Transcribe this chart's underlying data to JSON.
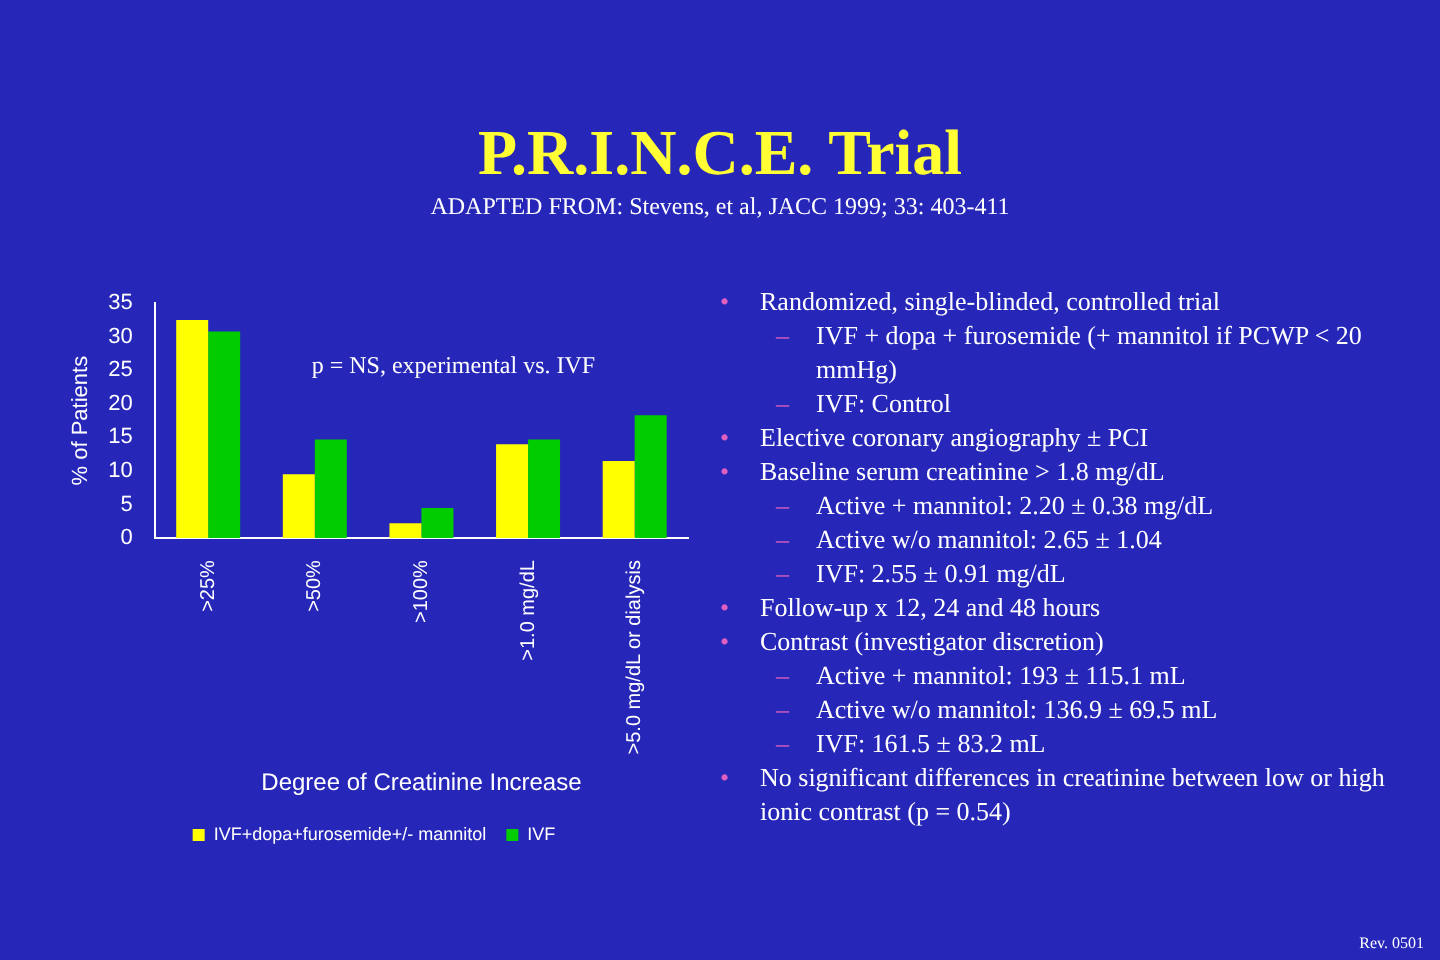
{
  "chart_data": {
    "type": "bar",
    "title": "P.R.I.N.C.E. Trial",
    "subtitle": "ADAPTED FROM: Stevens, et al, JACC 1999; 33:  403-411",
    "xlabel": "Degree of Creatinine Increase",
    "ylabel": "% of Patients",
    "categories": [
      ">25%",
      ">50%",
      ">100%",
      ">1.0 mg/dL",
      ">5.0 mg/dL or dialysis"
    ],
    "series": [
      {
        "name": "IVF+dopa+furosemide+/- mannitol",
        "color": "#ffff00",
        "values": [
          32.5,
          9.5,
          2.2,
          14,
          11.5
        ]
      },
      {
        "name": "IVF",
        "color": "#00cc00",
        "values": [
          30.8,
          14.7,
          4.5,
          14.7,
          18.3
        ]
      }
    ],
    "ylim": [
      0,
      35
    ],
    "yticks": [
      0,
      5,
      10,
      15,
      20,
      25,
      30,
      35
    ],
    "grid": false,
    "legend": "bottom",
    "annotations": [
      "p = NS, experimental vs. IVF",
      "• Randomized, single-blinded, controlled trial",
      "– IVF + dopa + furosemide (+ mannitol if PCWP < 20 mmHg)",
      "– IVF: Control",
      "• Elective coronary angiography ± PCI",
      "• Baseline serum creatinine > 1.8 mg/dL",
      "– Active + mannitol:  2.20 ± 0.38 mg/dL",
      "– Active w/o mannitol:  2.65 ± 1.04",
      "– IVF: 2.55 ± 0.91 mg/dL",
      "• Follow-up x 12, 24 and 48 hours",
      "• Contrast (investigator discretion)",
      "– Active + mannitol: 193 ± 115.1 mL",
      "– Active w/o mannitol: 136.9 ± 69.5 mL",
      "– IVF: 161.5 ± 83.2 mL",
      "• No significant differences in creatinine between low or high ionic contrast (p = 0.54)",
      "Rev. 0501"
    ]
  }
}
